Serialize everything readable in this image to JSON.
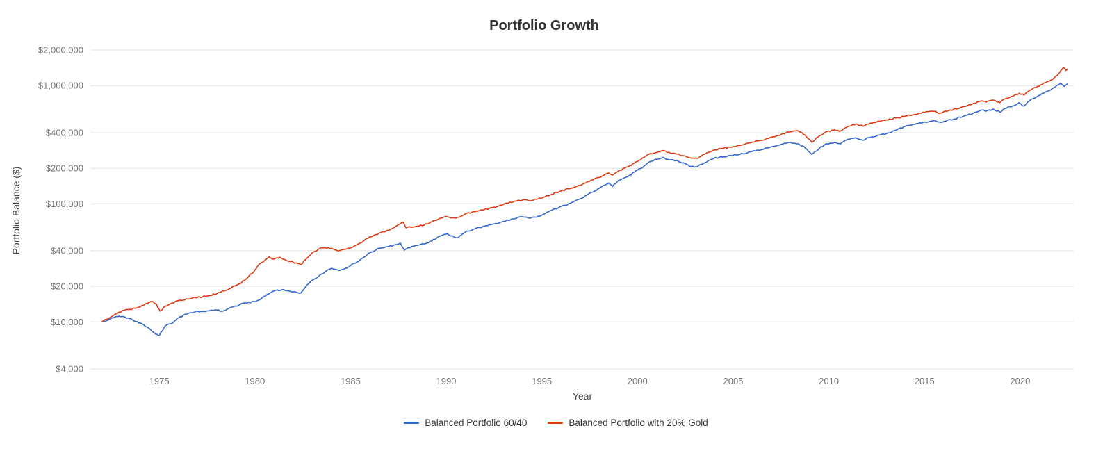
{
  "chart_data": {
    "type": "line",
    "title": "Portfolio Growth",
    "xlabel": "Year",
    "ylabel": "Portfolio Balance ($)",
    "y_scale": "log",
    "ylim": [
      4000,
      2000000
    ],
    "xlim": [
      1971.4,
      2022.8
    ],
    "y_ticks": [
      4000,
      10000,
      20000,
      40000,
      100000,
      200000,
      400000,
      1000000,
      2000000
    ],
    "x_ticks": [
      1975,
      1980,
      1985,
      1990,
      1995,
      2000,
      2005,
      2010,
      2015,
      2020
    ],
    "grid": "horizontal",
    "legend_position": "bottom",
    "series": [
      {
        "name": "Balanced Portfolio 60/40",
        "color": "#3366cc",
        "points": [
          [
            1972.0,
            10000
          ],
          [
            1972.3,
            10300
          ],
          [
            1972.6,
            10800
          ],
          [
            1972.9,
            11200
          ],
          [
            1973.2,
            11000
          ],
          [
            1973.6,
            10400
          ],
          [
            1974.0,
            9800
          ],
          [
            1974.4,
            9000
          ],
          [
            1974.8,
            7900
          ],
          [
            1975.0,
            7700
          ],
          [
            1975.3,
            9200
          ],
          [
            1975.7,
            9800
          ],
          [
            1976.0,
            10800
          ],
          [
            1976.5,
            11800
          ],
          [
            1977.0,
            12300
          ],
          [
            1977.5,
            12400
          ],
          [
            1978.0,
            12600
          ],
          [
            1978.3,
            12300
          ],
          [
            1978.7,
            13200
          ],
          [
            1979.0,
            13600
          ],
          [
            1979.5,
            14500
          ],
          [
            1980.0,
            14800
          ],
          [
            1980.3,
            15600
          ],
          [
            1980.7,
            17200
          ],
          [
            1981.0,
            18300
          ],
          [
            1981.5,
            18800
          ],
          [
            1982.0,
            17900
          ],
          [
            1982.4,
            17600
          ],
          [
            1982.7,
            20500
          ],
          [
            1983.0,
            22500
          ],
          [
            1983.5,
            25500
          ],
          [
            1984.0,
            28500
          ],
          [
            1984.4,
            27200
          ],
          [
            1984.8,
            28500
          ],
          [
            1985.0,
            30000
          ],
          [
            1985.5,
            33500
          ],
          [
            1986.0,
            38500
          ],
          [
            1986.5,
            42000
          ],
          [
            1987.0,
            43500
          ],
          [
            1987.6,
            46500
          ],
          [
            1987.8,
            40500
          ],
          [
            1988.0,
            42500
          ],
          [
            1988.5,
            44500
          ],
          [
            1989.0,
            46500
          ],
          [
            1989.7,
            53500
          ],
          [
            1990.0,
            55500
          ],
          [
            1990.6,
            51500
          ],
          [
            1991.0,
            57500
          ],
          [
            1991.5,
            61500
          ],
          [
            1992.0,
            64500
          ],
          [
            1992.5,
            67500
          ],
          [
            1993.0,
            71000
          ],
          [
            1993.5,
            74500
          ],
          [
            1994.0,
            77500
          ],
          [
            1994.4,
            75500
          ],
          [
            1994.8,
            78500
          ],
          [
            1995.0,
            80000
          ],
          [
            1995.5,
            88000
          ],
          [
            1996.0,
            95000
          ],
          [
            1996.5,
            101000
          ],
          [
            1997.0,
            110000
          ],
          [
            1997.5,
            123000
          ],
          [
            1998.0,
            135000
          ],
          [
            1998.5,
            150000
          ],
          [
            1998.7,
            140000
          ],
          [
            1999.0,
            158000
          ],
          [
            1999.5,
            170000
          ],
          [
            2000.0,
            193000
          ],
          [
            2000.3,
            205000
          ],
          [
            2000.6,
            225000
          ],
          [
            2001.0,
            238000
          ],
          [
            2001.3,
            247000
          ],
          [
            2001.7,
            235000
          ],
          [
            2002.0,
            232000
          ],
          [
            2002.4,
            222000
          ],
          [
            2002.8,
            207000
          ],
          [
            2003.1,
            205000
          ],
          [
            2003.5,
            222000
          ],
          [
            2004.0,
            243000
          ],
          [
            2004.5,
            250000
          ],
          [
            2005.0,
            258000
          ],
          [
            2005.5,
            265000
          ],
          [
            2006.0,
            278000
          ],
          [
            2006.5,
            288000
          ],
          [
            2007.0,
            303000
          ],
          [
            2007.5,
            318000
          ],
          [
            2007.9,
            330000
          ],
          [
            2008.3,
            322000
          ],
          [
            2008.7,
            305000
          ],
          [
            2009.1,
            262000
          ],
          [
            2009.5,
            295000
          ],
          [
            2009.9,
            322000
          ],
          [
            2010.3,
            330000
          ],
          [
            2010.6,
            320000
          ],
          [
            2011.0,
            352000
          ],
          [
            2011.4,
            362000
          ],
          [
            2011.8,
            345000
          ],
          [
            2012.0,
            362000
          ],
          [
            2012.5,
            375000
          ],
          [
            2013.0,
            392000
          ],
          [
            2013.5,
            420000
          ],
          [
            2014.0,
            452000
          ],
          [
            2014.5,
            470000
          ],
          [
            2015.0,
            492000
          ],
          [
            2015.5,
            505000
          ],
          [
            2015.8,
            488000
          ],
          [
            2016.0,
            498000
          ],
          [
            2016.5,
            518000
          ],
          [
            2017.0,
            548000
          ],
          [
            2017.5,
            578000
          ],
          [
            2018.0,
            622000
          ],
          [
            2018.2,
            605000
          ],
          [
            2018.6,
            632000
          ],
          [
            2018.95,
            595000
          ],
          [
            2019.2,
            640000
          ],
          [
            2019.6,
            672000
          ],
          [
            2019.95,
            712000
          ],
          [
            2020.2,
            672000
          ],
          [
            2020.5,
            745000
          ],
          [
            2020.9,
            810000
          ],
          [
            2021.2,
            862000
          ],
          [
            2021.6,
            922000
          ],
          [
            2021.95,
            1010000
          ],
          [
            2022.1,
            1045000
          ],
          [
            2022.3,
            985000
          ],
          [
            2022.45,
            1030000
          ]
        ]
      },
      {
        "name": "Balanced Portfolio with 20% Gold",
        "color": "#dc3912",
        "points": [
          [
            1972.0,
            10000
          ],
          [
            1972.3,
            10600
          ],
          [
            1972.6,
            11300
          ],
          [
            1972.9,
            12100
          ],
          [
            1973.2,
            12600
          ],
          [
            1973.6,
            12900
          ],
          [
            1974.0,
            13400
          ],
          [
            1974.3,
            14300
          ],
          [
            1974.6,
            14900
          ],
          [
            1974.85,
            14100
          ],
          [
            1975.05,
            12300
          ],
          [
            1975.3,
            13600
          ],
          [
            1975.6,
            14300
          ],
          [
            1976.0,
            15100
          ],
          [
            1976.5,
            15600
          ],
          [
            1977.0,
            16100
          ],
          [
            1977.5,
            16600
          ],
          [
            1978.0,
            17300
          ],
          [
            1978.4,
            18300
          ],
          [
            1978.8,
            19600
          ],
          [
            1979.2,
            21000
          ],
          [
            1979.6,
            23500
          ],
          [
            1980.0,
            27500
          ],
          [
            1980.2,
            30500
          ],
          [
            1980.5,
            33000
          ],
          [
            1980.75,
            35500
          ],
          [
            1981.0,
            34000
          ],
          [
            1981.3,
            35300
          ],
          [
            1981.6,
            33500
          ],
          [
            1982.0,
            32000
          ],
          [
            1982.4,
            30500
          ],
          [
            1982.7,
            34500
          ],
          [
            1983.0,
            38500
          ],
          [
            1983.5,
            42500
          ],
          [
            1984.0,
            42000
          ],
          [
            1984.4,
            40000
          ],
          [
            1984.8,
            41500
          ],
          [
            1985.0,
            42500
          ],
          [
            1985.5,
            46500
          ],
          [
            1986.0,
            52500
          ],
          [
            1986.5,
            56500
          ],
          [
            1987.0,
            59500
          ],
          [
            1987.5,
            66500
          ],
          [
            1987.75,
            70000
          ],
          [
            1987.9,
            62500
          ],
          [
            1988.0,
            63500
          ],
          [
            1988.5,
            64500
          ],
          [
            1989.0,
            67500
          ],
          [
            1989.7,
            75500
          ],
          [
            1990.0,
            78000
          ],
          [
            1990.5,
            75500
          ],
          [
            1991.0,
            82000
          ],
          [
            1991.5,
            85500
          ],
          [
            1992.0,
            89500
          ],
          [
            1992.5,
            93500
          ],
          [
            1993.0,
            99000
          ],
          [
            1993.5,
            104000
          ],
          [
            1994.0,
            108000
          ],
          [
            1994.4,
            106000
          ],
          [
            1994.8,
            110000
          ],
          [
            1995.0,
            112000
          ],
          [
            1995.5,
            120000
          ],
          [
            1996.0,
            128000
          ],
          [
            1996.5,
            135000
          ],
          [
            1997.0,
            143000
          ],
          [
            1997.5,
            155000
          ],
          [
            1998.0,
            167000
          ],
          [
            1998.5,
            182000
          ],
          [
            1998.7,
            175000
          ],
          [
            1999.0,
            190000
          ],
          [
            1999.5,
            205000
          ],
          [
            2000.0,
            228000
          ],
          [
            2000.3,
            245000
          ],
          [
            2000.6,
            262000
          ],
          [
            2001.0,
            272000
          ],
          [
            2001.3,
            282000
          ],
          [
            2001.7,
            268000
          ],
          [
            2002.0,
            265000
          ],
          [
            2002.4,
            255000
          ],
          [
            2002.8,
            243000
          ],
          [
            2003.1,
            242000
          ],
          [
            2003.5,
            262000
          ],
          [
            2004.0,
            285000
          ],
          [
            2004.5,
            295000
          ],
          [
            2005.0,
            305000
          ],
          [
            2005.5,
            315000
          ],
          [
            2006.0,
            332000
          ],
          [
            2006.5,
            345000
          ],
          [
            2007.0,
            365000
          ],
          [
            2007.5,
            385000
          ],
          [
            2007.9,
            405000
          ],
          [
            2008.3,
            415000
          ],
          [
            2008.6,
            398000
          ],
          [
            2008.8,
            372000
          ],
          [
            2009.1,
            332000
          ],
          [
            2009.5,
            375000
          ],
          [
            2009.9,
            408000
          ],
          [
            2010.3,
            422000
          ],
          [
            2010.6,
            412000
          ],
          [
            2011.0,
            452000
          ],
          [
            2011.4,
            472000
          ],
          [
            2011.8,
            452000
          ],
          [
            2012.0,
            472000
          ],
          [
            2012.5,
            492000
          ],
          [
            2013.0,
            512000
          ],
          [
            2013.5,
            532000
          ],
          [
            2014.0,
            552000
          ],
          [
            2014.5,
            572000
          ],
          [
            2015.0,
            592000
          ],
          [
            2015.5,
            605000
          ],
          [
            2015.8,
            585000
          ],
          [
            2016.0,
            600000
          ],
          [
            2016.5,
            628000
          ],
          [
            2017.0,
            662000
          ],
          [
            2017.5,
            698000
          ],
          [
            2018.0,
            742000
          ],
          [
            2018.2,
            722000
          ],
          [
            2018.6,
            755000
          ],
          [
            2018.95,
            722000
          ],
          [
            2019.2,
            772000
          ],
          [
            2019.6,
            812000
          ],
          [
            2019.95,
            862000
          ],
          [
            2020.2,
            832000
          ],
          [
            2020.5,
            912000
          ],
          [
            2020.9,
            982000
          ],
          [
            2021.2,
            1042000
          ],
          [
            2021.6,
            1112000
          ],
          [
            2021.95,
            1222000
          ],
          [
            2022.1,
            1322000
          ],
          [
            2022.25,
            1430000
          ],
          [
            2022.4,
            1342000
          ],
          [
            2022.45,
            1372000
          ]
        ]
      }
    ]
  }
}
